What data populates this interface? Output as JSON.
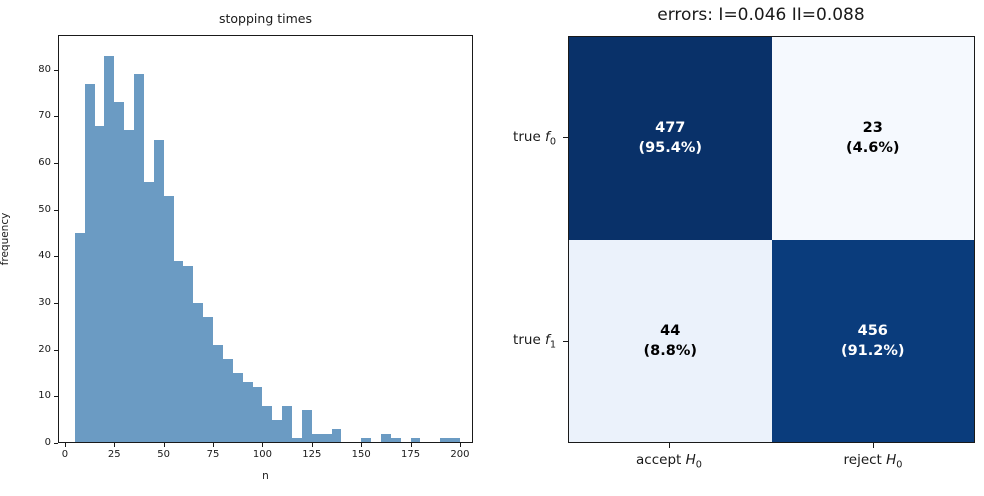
{
  "accent_colors": {
    "bar_fill": "#6B9BC3",
    "spine": "#1a1a1a"
  },
  "chart_data": [
    {
      "type": "bar",
      "subtype": "histogram",
      "title": "stopping times",
      "xlabel": "n",
      "ylabel": "frequency",
      "bin_start": 5,
      "bin_width": 5,
      "values": [
        45,
        77,
        68,
        83,
        73,
        67,
        79,
        56,
        65,
        53,
        39,
        38,
        30,
        27,
        21,
        18,
        15,
        13,
        12,
        8,
        5,
        8,
        1,
        7,
        2,
        2,
        3,
        0,
        0,
        1,
        0,
        2,
        1,
        0,
        1,
        0,
        0,
        1,
        1
      ],
      "xticks": [
        0,
        25,
        50,
        75,
        100,
        125,
        150,
        175,
        200
      ],
      "yticks": [
        0,
        10,
        20,
        30,
        40,
        50,
        60,
        70,
        80
      ],
      "xlim": [
        -3.5,
        206.6
      ],
      "ylim": [
        0,
        87.4
      ],
      "grid": false,
      "bar_color": "#6B9BC3"
    },
    {
      "type": "heatmap",
      "subtype": "confusion-matrix",
      "title": "errors: I=0.046 II=0.088",
      "row_labels": [
        {
          "prefix": "true ",
          "var": "f",
          "sub": "0"
        },
        {
          "prefix": "true ",
          "var": "f",
          "sub": "1"
        }
      ],
      "col_labels": [
        {
          "prefix": "accept ",
          "var": "H",
          "sub": "0"
        },
        {
          "prefix": "reject ",
          "var": "H",
          "sub": "0"
        }
      ],
      "cells": [
        [
          {
            "count": "477",
            "percent": "(95.4%)",
            "bg": "#093169",
            "fg": "#ffffff"
          },
          {
            "count": "23",
            "percent": "(4.6%)",
            "bg": "#F5F9FE",
            "fg": "#000000"
          }
        ],
        [
          {
            "count": "44",
            "percent": "(8.8%)",
            "bg": "#EBF2FB",
            "fg": "#000000"
          },
          {
            "count": "456",
            "percent": "(91.2%)",
            "bg": "#0A3C7C",
            "fg": "#ffffff"
          }
        ]
      ]
    }
  ]
}
